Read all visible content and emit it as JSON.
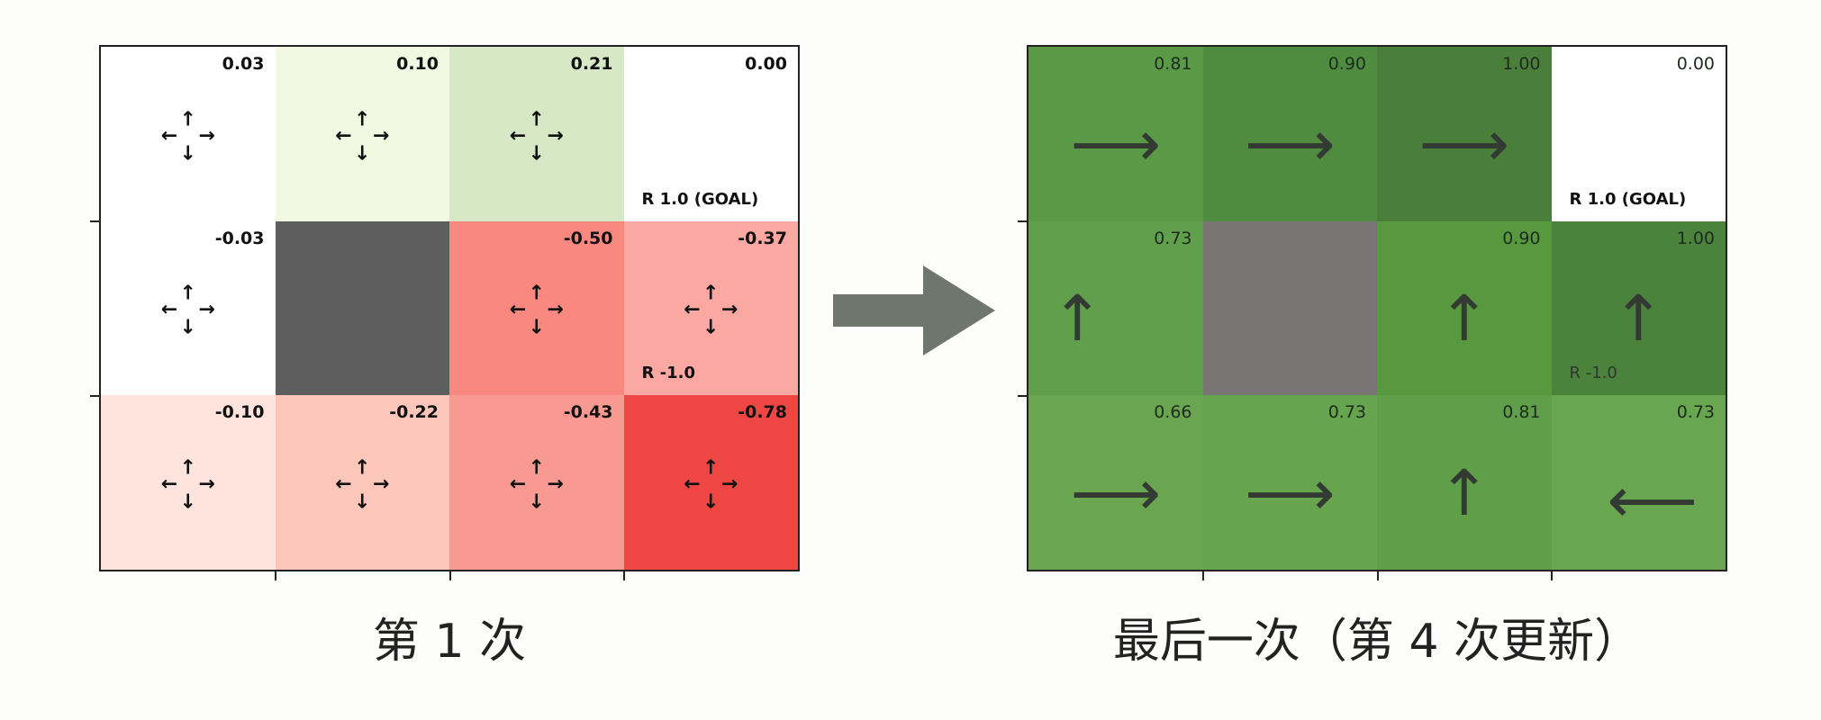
{
  "left_panel": {
    "caption": "第 1 次",
    "cells": [
      {
        "value": "0.03",
        "color": "#ffffff",
        "glyph": "all",
        "label": ""
      },
      {
        "value": "0.10",
        "color": "#f2f8e2",
        "glyph": "all",
        "label": ""
      },
      {
        "value": "0.21",
        "color": "#d6e8c6",
        "glyph": "all",
        "label": ""
      },
      {
        "value": "0.00",
        "color": "#ffffff",
        "glyph": "none",
        "label": "R 1.0 (GOAL)"
      },
      {
        "value": "-0.03",
        "color": "#ffffff",
        "glyph": "all",
        "label": ""
      },
      {
        "value": "",
        "color": "#5e5e5e",
        "glyph": "none",
        "label": ""
      },
      {
        "value": "-0.50",
        "color": "#f88880",
        "glyph": "all",
        "label": ""
      },
      {
        "value": "-0.37",
        "color": "#fba8a2",
        "glyph": "all",
        "label": "R -1.0"
      },
      {
        "value": "-0.10",
        "color": "#fee4dc",
        "glyph": "all",
        "label": ""
      },
      {
        "value": "-0.22",
        "color": "#fcc6ba",
        "glyph": "all",
        "label": ""
      },
      {
        "value": "-0.43",
        "color": "#f99a92",
        "glyph": "all",
        "label": ""
      },
      {
        "value": "-0.78",
        "color": "#ee4743",
        "glyph": "all",
        "label": ""
      }
    ]
  },
  "right_panel": {
    "caption": "最后一次（第 4 次更新）",
    "cells": [
      {
        "value": "0.81",
        "color": "#5a9a47",
        "glyph": "right",
        "label": ""
      },
      {
        "value": "0.90",
        "color": "#4f8c40",
        "glyph": "right",
        "label": ""
      },
      {
        "value": "1.00",
        "color": "#4a7f3b",
        "glyph": "right",
        "label": ""
      },
      {
        "value": "0.00",
        "color": "#ffffff",
        "glyph": "none",
        "label": "R 1.0 (GOAL)"
      },
      {
        "value": "0.73",
        "color": "#609f4b",
        "glyph": "up",
        "label": ""
      },
      {
        "value": "",
        "color": "#7a7575",
        "glyph": "none",
        "label": ""
      },
      {
        "value": "0.90",
        "color": "#58993f",
        "glyph": "up",
        "label": ""
      },
      {
        "value": "1.00",
        "color": "#4b823c",
        "glyph": "up",
        "label": "R -1.0"
      },
      {
        "value": "0.66",
        "color": "#6aa650",
        "glyph": "right",
        "label": ""
      },
      {
        "value": "0.73",
        "color": "#66a44d",
        "glyph": "right",
        "label": ""
      },
      {
        "value": "0.81",
        "color": "#5f9f4a",
        "glyph": "up",
        "label": ""
      },
      {
        "value": "0.73",
        "color": "#68a64f",
        "glyph": "left",
        "label": ""
      }
    ]
  },
  "glyphs": {
    "up": "↑",
    "down": "↓",
    "left": "←",
    "right": "→",
    "big_right": "⟶",
    "big_up": "↑",
    "big_left": "⟵"
  },
  "colors": {
    "transition_arrow": "#6e766e"
  }
}
